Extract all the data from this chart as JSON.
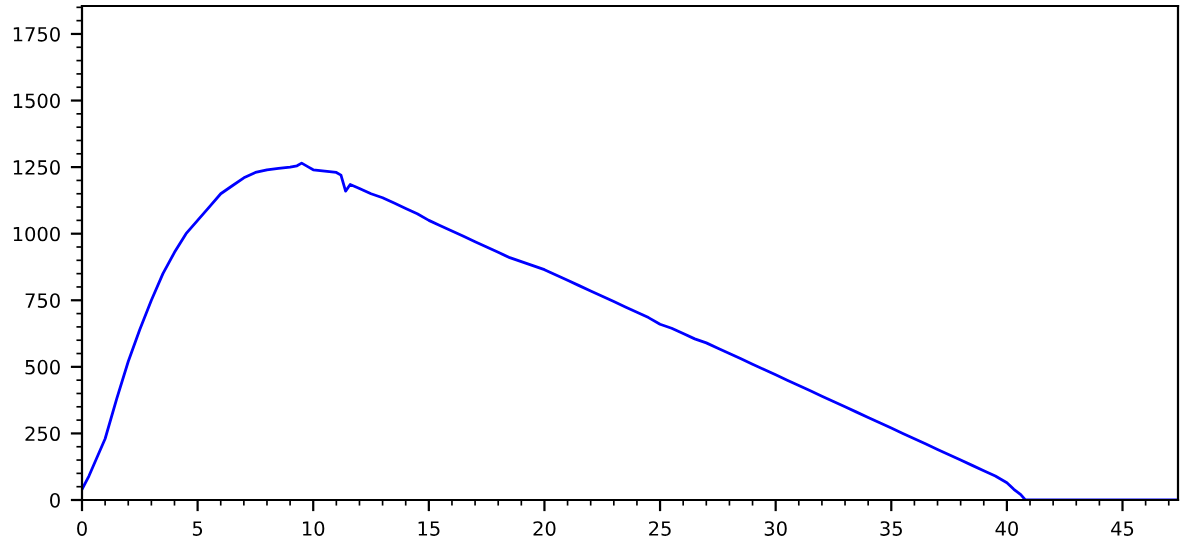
{
  "chart_data": {
    "type": "line",
    "x": [
      0,
      0.3,
      0.6,
      1,
      1.5,
      2,
      2.5,
      3,
      3.5,
      4,
      4.5,
      5,
      5.5,
      6,
      6.5,
      7,
      7.5,
      8,
      8.5,
      9,
      9.3,
      9.5,
      9.8,
      10,
      10.5,
      11,
      11.2,
      11.4,
      11.6,
      12,
      12.5,
      13,
      13.5,
      14,
      14.5,
      15,
      15.5,
      16,
      16.5,
      17,
      17.5,
      18,
      18.5,
      19,
      19.5,
      20,
      20.5,
      21,
      21.5,
      22,
      22.5,
      23,
      23.5,
      24,
      24.5,
      25,
      25.5,
      26,
      26.5,
      27,
      27.5,
      28,
      28.5,
      29,
      29.5,
      30,
      30.5,
      31,
      31.5,
      32,
      32.5,
      33,
      33.5,
      34,
      34.5,
      35,
      35.5,
      36,
      36.5,
      37,
      37.5,
      38,
      38.5,
      39,
      39.5,
      40,
      40.3,
      40.6,
      40.8,
      41,
      47.4
    ],
    "series": [
      {
        "color": "#0000ff",
        "values": [
          40,
          90,
          150,
          230,
          380,
          520,
          640,
          750,
          850,
          930,
          1000,
          1050,
          1100,
          1150,
          1180,
          1210,
          1230,
          1240,
          1245,
          1250,
          1255,
          1265,
          1250,
          1240,
          1235,
          1230,
          1220,
          1160,
          1185,
          1170,
          1150,
          1135,
          1115,
          1095,
          1075,
          1050,
          1030,
          1010,
          990,
          970,
          950,
          930,
          910,
          895,
          880,
          865,
          845,
          825,
          805,
          785,
          765,
          745,
          725,
          705,
          685,
          660,
          645,
          625,
          605,
          590,
          570,
          550,
          530,
          510,
          490,
          470,
          450,
          430,
          410,
          390,
          370,
          350,
          330,
          310,
          290,
          270,
          250,
          230,
          210,
          190,
          170,
          150,
          130,
          110,
          90,
          65,
          40,
          20,
          0,
          0,
          0
        ]
      }
    ],
    "xlim": [
      0,
      47.4
    ],
    "ylim": [
      0,
      1855
    ],
    "xticks": [
      0,
      5,
      10,
      15,
      20,
      25,
      30,
      35,
      40,
      45
    ],
    "yticks": [
      0,
      250,
      500,
      750,
      1000,
      1250,
      1500,
      1750
    ],
    "grid": false,
    "marker": "none",
    "line_style": "solid"
  }
}
